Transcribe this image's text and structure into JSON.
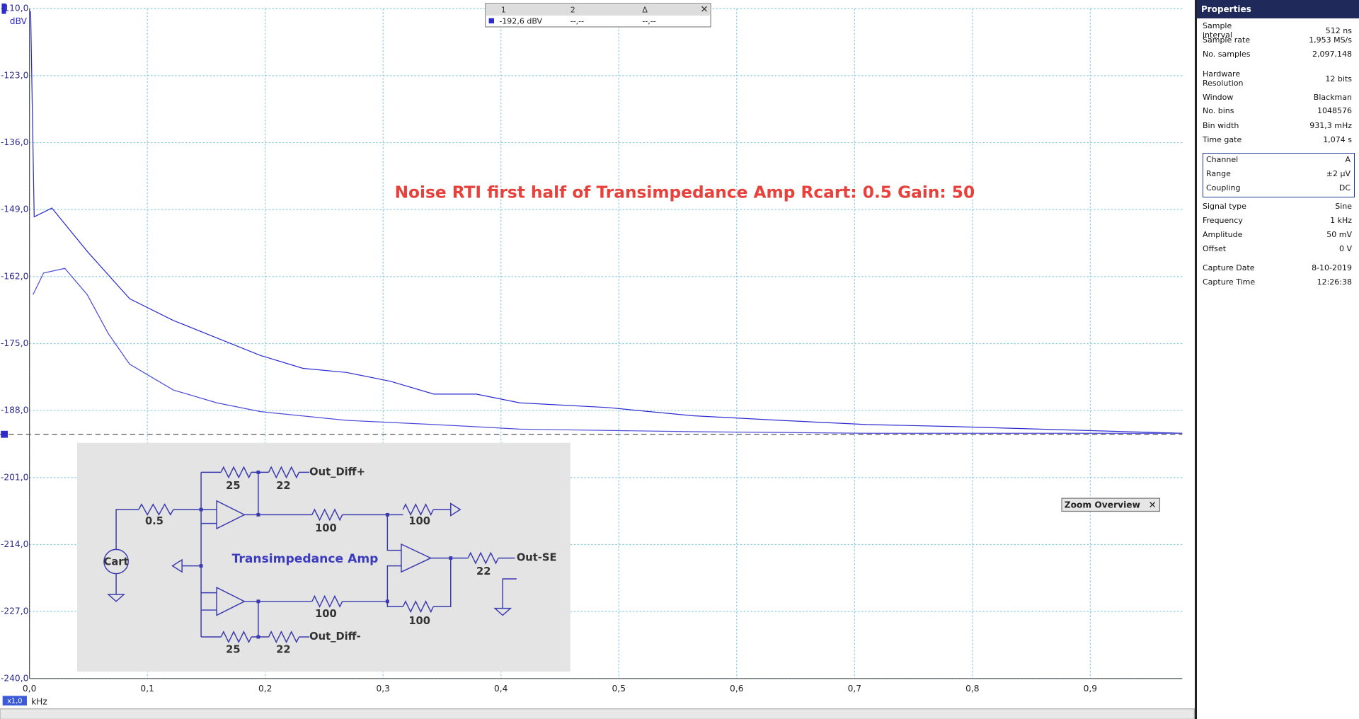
{
  "chart_data": {
    "type": "line",
    "annotation": "Noise RTI first half of Transimpedance Amp  Rcart: 0.5 Gain: 50",
    "y_unit": "dBV",
    "x_unit": "kHz",
    "zoom": "x1,0",
    "grid": true,
    "ylim": [
      -240,
      -110
    ],
    "yticks": [
      {
        "value": -110,
        "label": "-110,0"
      },
      {
        "value": -123,
        "label": "-123,0"
      },
      {
        "value": -136,
        "label": "-136,0"
      },
      {
        "value": -149,
        "label": "-149,0"
      },
      {
        "value": -162,
        "label": "-162,0"
      },
      {
        "value": -175,
        "label": "-175,0"
      },
      {
        "value": -188,
        "label": "-188,0"
      },
      {
        "value": -201,
        "label": "-201,0"
      },
      {
        "value": -214,
        "label": "-214,0"
      },
      {
        "value": -227,
        "label": "-227,0"
      },
      {
        "value": -240,
        "label": "-240,0"
      }
    ],
    "xlim": [
      0,
      0.978
    ],
    "xticks": [
      {
        "value": 0,
        "label": "0,0"
      },
      {
        "value": 0.1,
        "label": "0,1"
      },
      {
        "value": 0.2,
        "label": "0,2"
      },
      {
        "value": 0.3,
        "label": "0,3"
      },
      {
        "value": 0.4,
        "label": "0,4"
      },
      {
        "value": 0.5,
        "label": "0,5"
      },
      {
        "value": 0.6,
        "label": "0,6"
      },
      {
        "value": 0.7,
        "label": "0,7"
      },
      {
        "value": 0.8,
        "label": "0,8"
      },
      {
        "value": 0.9,
        "label": "0,9"
      }
    ],
    "ruler": -192.6,
    "series": [
      {
        "color": "#2b2bd0",
        "x": [
          0.001,
          0.004,
          0.019,
          0.049,
          0.085,
          0.122,
          0.159,
          0.196,
          0.232,
          0.269,
          0.306,
          0.343,
          0.379,
          0.416,
          0.49,
          0.563,
          0.637,
          0.71,
          0.784,
          0.857,
          0.978
        ],
        "values": [
          -110.5,
          -150.4,
          -148.7,
          -157.1,
          -166.3,
          -170.5,
          -173.9,
          -177.3,
          -179.8,
          -180.6,
          -182.3,
          -184.8,
          -184.8,
          -186.5,
          -187.4,
          -189.0,
          -189.9,
          -190.7,
          -191.1,
          -191.6,
          -192.4
        ]
      },
      {
        "color": "#4a4ad8",
        "x": [
          0.003,
          0.012,
          0.03,
          0.049,
          0.067,
          0.085,
          0.122,
          0.159,
          0.196,
          0.269,
          0.343,
          0.416,
          0.563,
          0.71,
          0.978
        ],
        "values": [
          -165.5,
          -161.3,
          -160.4,
          -165.5,
          -173.1,
          -179.0,
          -184.0,
          -186.5,
          -188.2,
          -189.9,
          -190.7,
          -191.6,
          -192.1,
          -192.4,
          -192.4
        ]
      }
    ]
  },
  "measurements": {
    "headers": [
      "1",
      "2",
      "Δ"
    ],
    "row": [
      "-192,6 dBV",
      "--,--",
      "--,--"
    ]
  },
  "zoom_overview": "Zoom Overview",
  "schematic": {
    "title": "Transimpedance Amp",
    "labels": [
      "25",
      "22",
      "Out_Diff+",
      "0.5",
      "100",
      "100",
      "Cart",
      "22",
      "Out-SE",
      "100",
      "100",
      "25",
      "22",
      "Out_Diff-"
    ]
  },
  "properties": {
    "title": "Properties",
    "rows": [
      {
        "label": "Sample interval",
        "value": "512 ns"
      },
      {
        "label": "Sample rate",
        "value": "1,953 MS/s"
      },
      {
        "label": "No. samples",
        "value": "2,097,148"
      },
      {
        "label": "Hardware Resolution",
        "value": "12 bits"
      },
      {
        "label": "Window",
        "value": "Blackman"
      },
      {
        "label": "No. bins",
        "value": "1048576"
      },
      {
        "label": "Bin width",
        "value": "931,3 mHz"
      },
      {
        "label": "Time gate",
        "value": "1,074 s"
      },
      {
        "label": "Channel",
        "value": "A"
      },
      {
        "label": "Range",
        "value": "±2 µV"
      },
      {
        "label": "Coupling",
        "value": "DC"
      },
      {
        "label": "Signal type",
        "value": "Sine"
      },
      {
        "label": "Frequency",
        "value": "1 kHz"
      },
      {
        "label": "Amplitude",
        "value": "50 mV"
      },
      {
        "label": "Offset",
        "value": "0 V"
      },
      {
        "label": "Capture Date",
        "value": "8-10-2019"
      },
      {
        "label": "Capture Time",
        "value": "12:26:38"
      }
    ]
  }
}
